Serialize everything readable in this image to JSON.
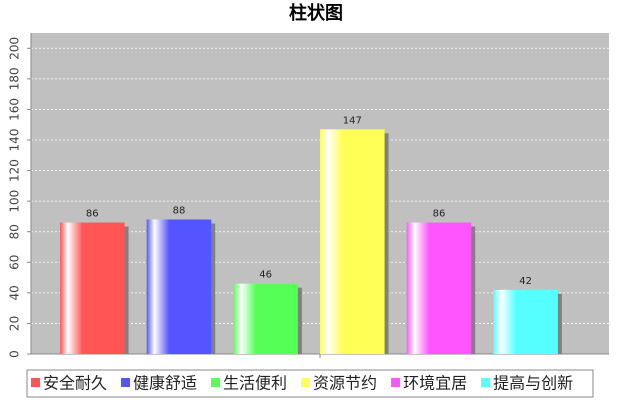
{
  "chart_data": {
    "type": "bar",
    "title": "柱状图",
    "categories": [
      null
    ],
    "series": [
      {
        "name": "安全耐久",
        "color": "#ff5555",
        "values": [
          86
        ]
      },
      {
        "name": "健康舒适",
        "color": "#5555ff",
        "values": [
          88
        ]
      },
      {
        "name": "生活便利",
        "color": "#55ff55",
        "values": [
          46
        ]
      },
      {
        "name": "资源节约",
        "color": "#ffff55",
        "values": [
          147
        ]
      },
      {
        "name": "环境宜居",
        "color": "#ff55ff",
        "values": [
          86
        ]
      },
      {
        "name": "提高与创新",
        "color": "#55ffff",
        "values": [
          42
        ]
      }
    ],
    "ylim": [
      0,
      210
    ],
    "yticks": [
      0,
      20,
      40,
      60,
      80,
      100,
      120,
      140,
      160,
      180,
      200
    ],
    "grid": true,
    "legend": "bottom"
  }
}
